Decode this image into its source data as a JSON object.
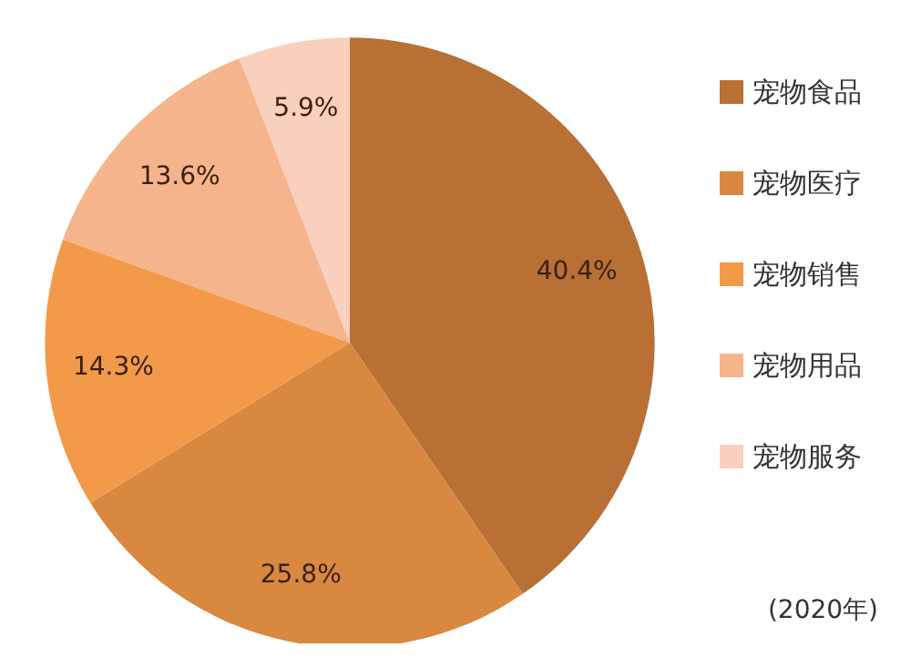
{
  "chart_data": {
    "type": "pie",
    "categories": [
      "宠物食品",
      "宠物医疗",
      "宠物销售",
      "宠物用品",
      "宠物服务"
    ],
    "values": [
      40.4,
      25.8,
      14.3,
      13.6,
      5.9
    ],
    "colors": [
      "#b87035",
      "#d9883f",
      "#f29a4a",
      "#f5b48c",
      "#f9cfbd"
    ],
    "value_labels": [
      "40.4%",
      "25.8%",
      "14.3%",
      "13.6%",
      "5.9%"
    ],
    "legend": "right",
    "annotations": [
      "(2020年)"
    ]
  }
}
